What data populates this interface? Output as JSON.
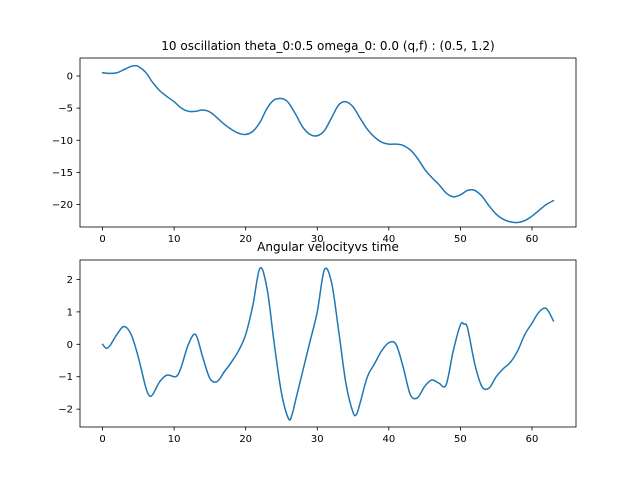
{
  "chart_data": [
    {
      "type": "line",
      "title": "10 oscillation theta_0:0.5 omega_0: 0.0 (q,f) : (0.5, 1.2)",
      "xlabel": "",
      "ylabel": "",
      "xlim": [
        -3.15,
        66.15
      ],
      "ylim": [
        -23.5,
        2.8
      ],
      "xticks": [
        0,
        10,
        20,
        30,
        40,
        50,
        60
      ],
      "yticks": [
        0,
        -5,
        -10,
        -15,
        -20
      ],
      "grid": false,
      "color": "#1f77b4",
      "series": [
        {
          "x": [
            0,
            1,
            2,
            3,
            4,
            4.5,
            5,
            6,
            7,
            8,
            9,
            10,
            11,
            12,
            13,
            14,
            15,
            16,
            17,
            18,
            19,
            20,
            21,
            22,
            23,
            24,
            25,
            25.5,
            26,
            27,
            28,
            29,
            30,
            31,
            32,
            33,
            34,
            35,
            36,
            37,
            38,
            39,
            40,
            41,
            42,
            43,
            44,
            45,
            46,
            47,
            48,
            49,
            50,
            51,
            52,
            53,
            54,
            55,
            56,
            57,
            58,
            59,
            60,
            61,
            62,
            63
          ],
          "y": [
            0.5,
            0.4,
            0.5,
            1.0,
            1.5,
            1.6,
            1.5,
            0.6,
            -1.0,
            -2.3,
            -3.2,
            -4.0,
            -5.0,
            -5.5,
            -5.5,
            -5.3,
            -5.6,
            -6.5,
            -7.5,
            -8.3,
            -8.9,
            -9.1,
            -8.6,
            -7.2,
            -5.0,
            -3.7,
            -3.5,
            -3.7,
            -4.2,
            -6.0,
            -8.0,
            -9.1,
            -9.3,
            -8.5,
            -6.5,
            -4.5,
            -4.0,
            -4.8,
            -6.6,
            -8.3,
            -9.5,
            -10.3,
            -10.6,
            -10.6,
            -10.8,
            -11.5,
            -12.8,
            -14.5,
            -15.8,
            -16.9,
            -18.2,
            -18.8,
            -18.5,
            -17.8,
            -17.8,
            -18.7,
            -20.2,
            -21.5,
            -22.3,
            -22.7,
            -22.8,
            -22.5,
            -21.8,
            -20.9,
            -20.0,
            -19.4
          ]
        }
      ]
    },
    {
      "type": "line",
      "title": "Angular velocityvs time",
      "xlabel": "",
      "ylabel": "",
      "xlim": [
        -3.15,
        66.15
      ],
      "ylim": [
        -2.55,
        2.6
      ],
      "xticks": [
        0,
        10,
        20,
        30,
        40,
        50,
        60
      ],
      "yticks": [
        2,
        1,
        0,
        -1,
        -2
      ],
      "grid": false,
      "color": "#1f77b4",
      "series": [
        {
          "x": [
            0,
            0.5,
            1,
            2,
            3,
            4,
            5,
            6,
            6.5,
            7,
            8,
            9,
            10,
            10.5,
            11,
            12,
            13,
            14,
            15,
            16,
            17,
            18,
            19,
            20,
            21,
            22,
            23,
            24,
            25,
            26,
            26.5,
            27,
            28,
            29,
            30,
            31,
            32,
            33,
            34,
            35,
            35.5,
            36,
            37,
            38,
            39,
            40,
            41,
            42,
            43,
            44,
            45,
            46,
            47,
            48,
            49,
            50,
            50.5,
            51,
            52,
            53,
            54,
            55,
            56,
            57,
            58,
            59,
            60,
            61,
            62,
            63
          ],
          "y": [
            0,
            -0.12,
            -0.05,
            0.3,
            0.55,
            0.3,
            -0.4,
            -1.3,
            -1.58,
            -1.55,
            -1.15,
            -0.95,
            -1.0,
            -0.95,
            -0.7,
            0.0,
            0.3,
            -0.4,
            -1.05,
            -1.15,
            -0.85,
            -0.55,
            -0.2,
            0.3,
            1.2,
            2.35,
            1.7,
            0.0,
            -1.5,
            -2.3,
            -2.15,
            -1.7,
            -0.8,
            0.1,
            1.0,
            2.3,
            1.9,
            0.4,
            -1.2,
            -2.1,
            -2.15,
            -1.8,
            -1.0,
            -0.6,
            -0.2,
            0.05,
            0.0,
            -0.7,
            -1.55,
            -1.65,
            -1.3,
            -1.1,
            -1.2,
            -1.25,
            -0.2,
            0.6,
            0.62,
            0.5,
            -0.6,
            -1.3,
            -1.35,
            -1.0,
            -0.75,
            -0.55,
            -0.2,
            0.3,
            0.65,
            1.0,
            1.1,
            0.72
          ]
        }
      ]
    }
  ]
}
